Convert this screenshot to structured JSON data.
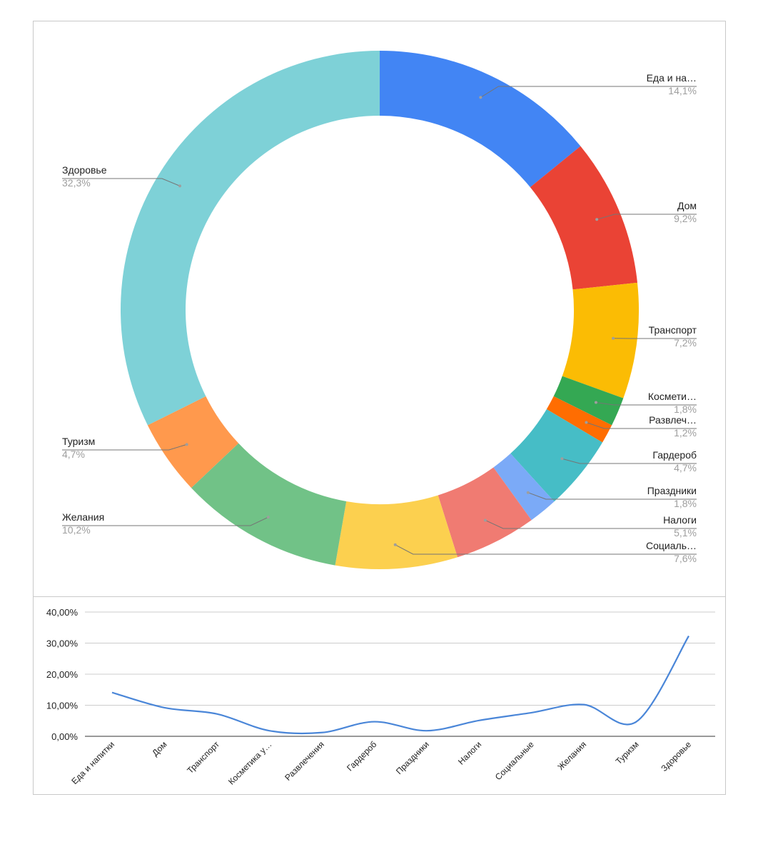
{
  "colors": {
    "slices": [
      "#4285F4",
      "#EA4335",
      "#FBBC04",
      "#34A853",
      "#FF6D01",
      "#46BDC6",
      "#7BAAF7",
      "#F07B72",
      "#FCD04F",
      "#71C287",
      "#FF994D",
      "#7ED1D7"
    ],
    "label_text": "#222222",
    "percent_text": "#9e9e9e",
    "leader": "#757575",
    "line": "#4a86d8",
    "grid": "#cccccc",
    "axis": "#333333"
  },
  "chart_data": [
    {
      "type": "pie",
      "donut": true,
      "labels": [
        "Еда и на…",
        "Дом",
        "Транспорт",
        "Космети…",
        "Развлеч…",
        "Гардероб",
        "Праздники",
        "Налоги",
        "Социаль…",
        "Желания",
        "Туризм",
        "Здоровье"
      ],
      "values": [
        14.1,
        9.2,
        7.2,
        1.8,
        1.2,
        4.7,
        1.8,
        5.1,
        7.6,
        10.2,
        4.7,
        32.3
      ],
      "percent_labels": [
        "14,1%",
        "9,2%",
        "7,2%",
        "1,8%",
        "1,2%",
        "4,7%",
        "1,8%",
        "5,1%",
        "7,6%",
        "10,2%",
        "4,7%",
        "32,3%"
      ],
      "label_sides": [
        "right",
        "right",
        "right",
        "right",
        "right",
        "right",
        "right",
        "right",
        "right",
        "left",
        "left",
        "left"
      ]
    },
    {
      "type": "line",
      "smooth": true,
      "categories": [
        "Еда и напитки",
        "Дом",
        "Транспорт",
        "Косметика у…",
        "Развлечения",
        "Гардероб",
        "Праздники",
        "Налоги",
        "Социальные",
        "Желания",
        "Туризм",
        "Здоровье"
      ],
      "values": [
        14.1,
        9.2,
        7.2,
        1.8,
        1.2,
        4.7,
        1.8,
        5.1,
        7.6,
        10.2,
        4.7,
        32.3
      ],
      "ylim": [
        0,
        40
      ],
      "yticks": [
        "0,00%",
        "10,00%",
        "20,00%",
        "30,00%",
        "40,00%"
      ],
      "grid": true
    }
  ]
}
